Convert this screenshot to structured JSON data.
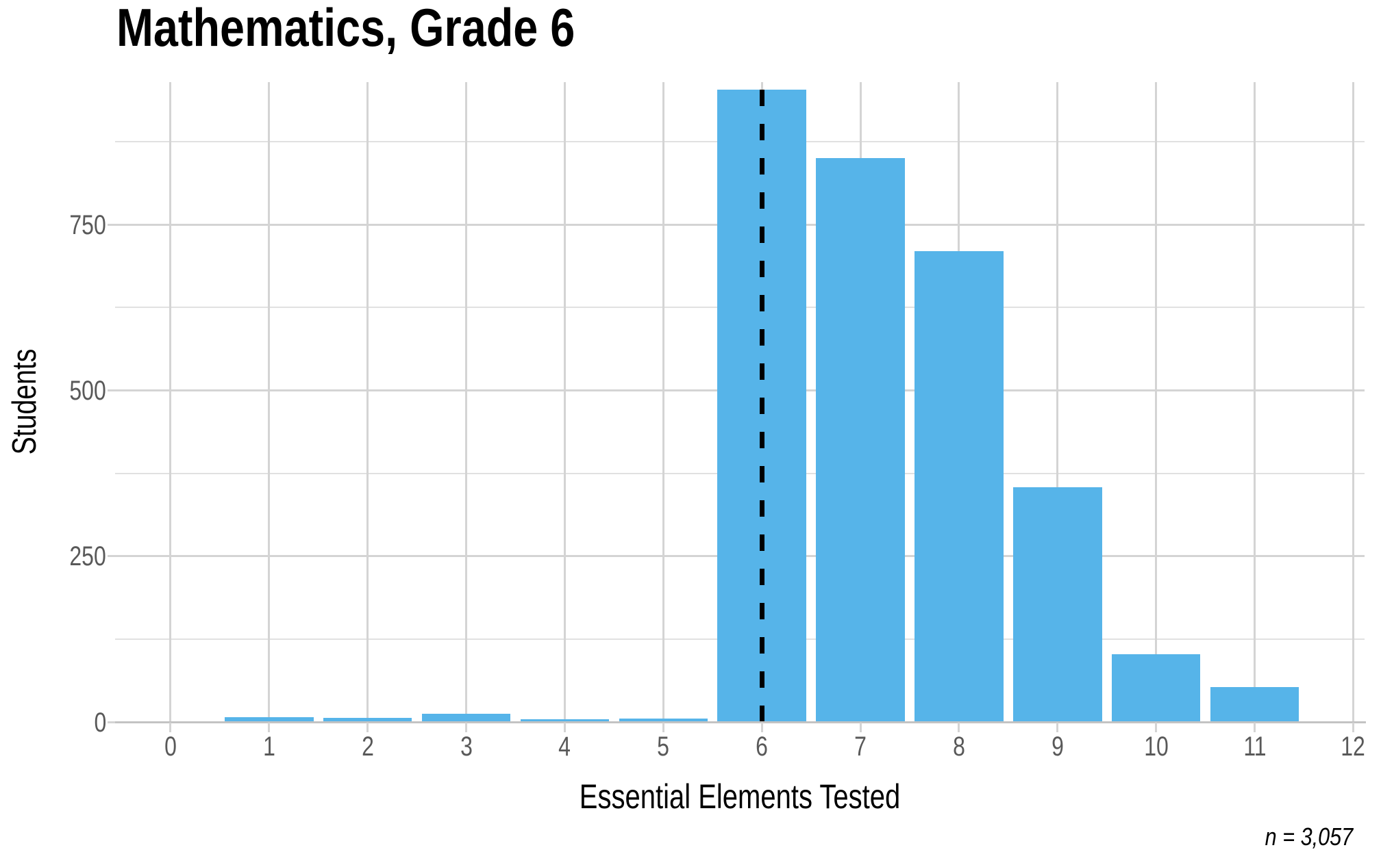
{
  "chart_data": {
    "type": "bar",
    "title": "Mathematics, Grade 6",
    "xlabel": "Essential Elements Tested",
    "ylabel": "Students",
    "annotation": "n = 3,057",
    "categories": [
      1,
      2,
      3,
      4,
      5,
      6,
      7,
      8,
      9,
      10,
      11
    ],
    "values": [
      7,
      6,
      12,
      4,
      5,
      954,
      850,
      710,
      354,
      102,
      53
    ],
    "bar_width": 0.9,
    "x_ticks": [
      0,
      1,
      2,
      3,
      4,
      5,
      6,
      7,
      8,
      9,
      10,
      11,
      12
    ],
    "y_ticks": [
      0,
      250,
      500,
      750
    ],
    "y_minor_ticks": [
      125,
      375,
      625,
      875
    ],
    "xlim": [
      -0.563,
      12.115
    ],
    "ylim": [
      0,
      965
    ],
    "grid": true,
    "legend": "none",
    "reference_line": {
      "x": 6,
      "style": "dashed",
      "color": "#000000"
    },
    "colors": {
      "bar": "#56B4E9",
      "grid_major": "#d4d4d4",
      "grid_minor": "#e1e1e1",
      "axis_line": "#c3c3c3",
      "tick_label": "#595959",
      "text": "#000000"
    }
  }
}
